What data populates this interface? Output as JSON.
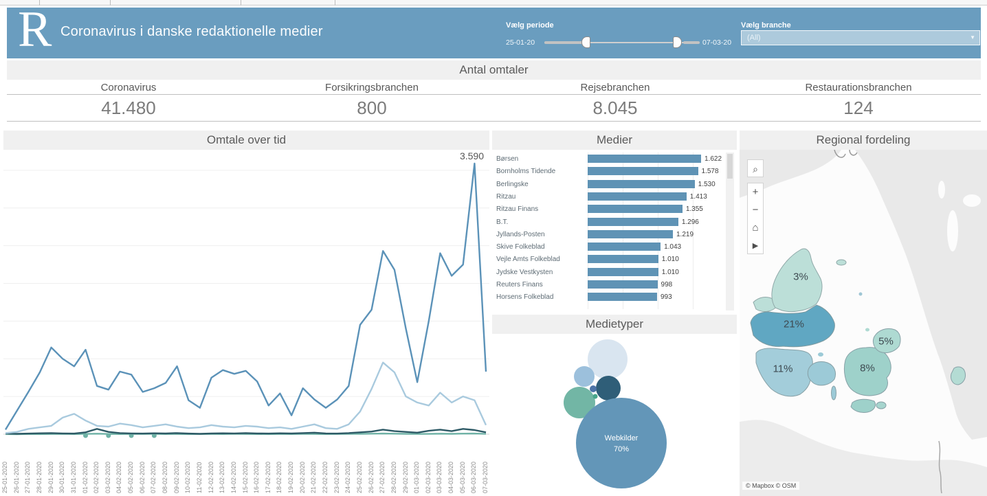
{
  "header": {
    "logo": "R",
    "title": "Coronavirus i danske redaktionelle medier",
    "period_filter": {
      "label": "Vælg periode",
      "start": "25-01-20",
      "end": "07-03-20"
    },
    "branch_filter": {
      "label": "Vælg branche",
      "value": "(All)",
      "caret_icon": "▼"
    }
  },
  "kpi": {
    "title": "Antal omtaler",
    "items": [
      {
        "label": "Coronavirus",
        "value": "41.480"
      },
      {
        "label": "Forsikringsbranchen",
        "value": "800"
      },
      {
        "label": "Rejsebranchen",
        "value": "8.045"
      },
      {
        "label": "Restaurationsbranchen",
        "value": "124"
      }
    ]
  },
  "colors": {
    "header_bg": "#6a9dbf",
    "line_coronavirus": "#5b92b8",
    "line_rejse": "#a9cade",
    "line_forsikring": "#2e5a66",
    "line_restauration": "#6fb2a6",
    "bar": "#5f93b5",
    "panel_title_bg": "#f0f0f0"
  },
  "chart_data": [
    {
      "type": "line",
      "title": "Omtale over tid",
      "peak_label": "3.590",
      "ylim": [
        0,
        3700
      ],
      "gridline_step": 500,
      "grid": true,
      "legend_position": "none",
      "x": [
        "25-01-2020",
        "26-01-2020",
        "27-01-2020",
        "28-01-2020",
        "29-01-2020",
        "30-01-2020",
        "31-01-2020",
        "01-02-2020",
        "02-02-2020",
        "03-02-2020",
        "04-02-2020",
        "05-02-2020",
        "06-02-2020",
        "07-02-2020",
        "08-02-2020",
        "09-02-2020",
        "10-02-2020",
        "11-02-2020",
        "12-02-2020",
        "13-02-2020",
        "14-02-2020",
        "15-02-2020",
        "16-02-2020",
        "17-02-2020",
        "18-02-2020",
        "19-02-2020",
        "20-02-2020",
        "21-02-2020",
        "22-02-2020",
        "23-02-2020",
        "24-02-2020",
        "25-02-2020",
        "26-02-2020",
        "27-02-2020",
        "28-02-2020",
        "29-02-2020",
        "01-03-2020",
        "02-03-2020",
        "03-03-2020",
        "04-03-2020",
        "05-03-2020",
        "06-03-2020",
        "07-03-2020"
      ],
      "series": [
        {
          "name": "Coronavirus",
          "color": "#5b92b8",
          "values": [
            60,
            310,
            560,
            820,
            1150,
            1000,
            900,
            1120,
            640,
            590,
            830,
            790,
            560,
            610,
            680,
            900,
            450,
            350,
            750,
            850,
            800,
            840,
            700,
            380,
            540,
            250,
            610,
            460,
            350,
            460,
            640,
            1450,
            1650,
            2430,
            2180,
            1400,
            690,
            1500,
            2400,
            2100,
            2250,
            3590,
            830
          ]
        },
        {
          "name": "Rejsebranchen",
          "color": "#a9cade",
          "values": [
            15,
            30,
            70,
            90,
            110,
            220,
            270,
            180,
            110,
            100,
            140,
            120,
            90,
            110,
            130,
            100,
            80,
            90,
            120,
            100,
            90,
            110,
            100,
            80,
            90,
            70,
            100,
            130,
            80,
            70,
            130,
            300,
            600,
            950,
            820,
            500,
            420,
            380,
            550,
            420,
            500,
            450,
            120
          ]
        },
        {
          "name": "Forsikringsbranchen",
          "color": "#2e5a66",
          "values": [
            10,
            5,
            8,
            12,
            15,
            10,
            8,
            25,
            70,
            30,
            15,
            10,
            8,
            12,
            10,
            15,
            8,
            5,
            10,
            12,
            10,
            15,
            10,
            8,
            12,
            10,
            15,
            20,
            10,
            8,
            15,
            25,
            35,
            60,
            40,
            30,
            20,
            45,
            60,
            40,
            70,
            55,
            25
          ]
        },
        {
          "name": "Restaurationsbranchen",
          "color": "#6fb2a6",
          "values": [
            1,
            0,
            2,
            1,
            3,
            5,
            2,
            4,
            6,
            3,
            2,
            5,
            3,
            4,
            2,
            3,
            1,
            2,
            3,
            2,
            4,
            3,
            2,
            1,
            3,
            2,
            4,
            3,
            2,
            3,
            4,
            5,
            6,
            8,
            6,
            5,
            3,
            4,
            6,
            5,
            7,
            8,
            4
          ],
          "marker_days": [
            7,
            9,
            11,
            13
          ]
        }
      ]
    },
    {
      "type": "bar",
      "title": "Medier",
      "categories": [
        "Børsen",
        "Bornholms Tidende",
        "Berlingske",
        "Ritzau",
        "Ritzau Finans",
        "B.T.",
        "Jyllands-Posten",
        "Skive Folkeblad",
        "Vejle Amts Folkeblad",
        "Jydske Vestkysten",
        "Reuters Finans",
        "Horsens Folkeblad"
      ],
      "values": [
        1622,
        1578,
        1530,
        1413,
        1355,
        1296,
        1219,
        1043,
        1010,
        1010,
        998,
        993
      ],
      "value_labels": [
        "1.622",
        "1.578",
        "1.530",
        "1.413",
        "1.355",
        "1.296",
        "1.219",
        "1.043",
        "1.010",
        "1.010",
        "998",
        "993"
      ],
      "xlim": [
        0,
        1700
      ]
    },
    {
      "type": "bubble",
      "title": "Medietyper",
      "bubbles": [
        {
          "label": "Webkilder",
          "pct": "70%"
        }
      ]
    },
    {
      "type": "map",
      "title": "Regional fordeling",
      "regions": [
        {
          "label": "3%"
        },
        {
          "label": "21%"
        },
        {
          "label": "11%"
        },
        {
          "label": "8%"
        },
        {
          "label": "5%"
        }
      ],
      "attribution": "© Mapbox © OSM",
      "controls": {
        "search": "⌕",
        "zoom_in": "+",
        "zoom_out": "−",
        "home": "⌂",
        "expand": "▶"
      }
    }
  ]
}
